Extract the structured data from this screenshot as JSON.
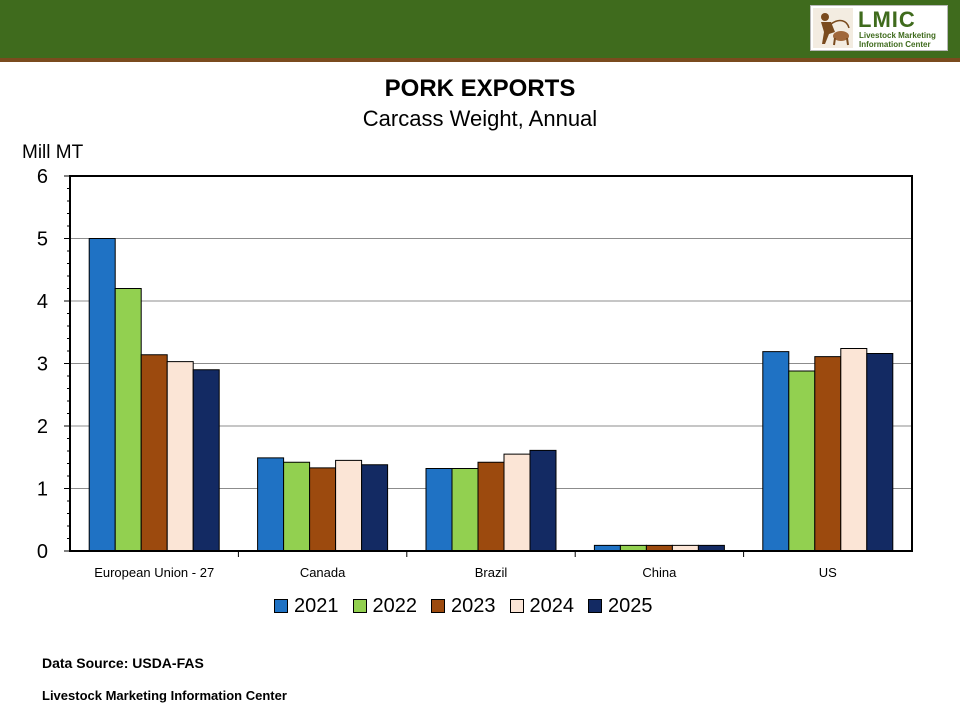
{
  "header": {
    "logo_name": "LMIC",
    "logo_sub_1": "Livestock Marketing",
    "logo_sub_2": "Information Center"
  },
  "colors": {
    "band": "#3f6b1d",
    "rule": "#7a4b1e",
    "series": [
      "#1f72c4",
      "#92d050",
      "#9c4a0e",
      "#fbe5d6",
      "#132a63"
    ]
  },
  "chart_data": {
    "type": "bar",
    "title": "PORK EXPORTS",
    "subtitle": "Carcass Weight, Annual",
    "ylabel": "Mill MT",
    "xlabel": "",
    "ylim": [
      0,
      6
    ],
    "yticks": [
      "0",
      "1",
      "2",
      "3",
      "4",
      "5",
      "6"
    ],
    "grid": true,
    "legend_position": "bottom",
    "categories": [
      "European Union - 27",
      "Canada",
      "Brazil",
      "China",
      "US"
    ],
    "series": [
      {
        "name": "2021",
        "values": [
          5.0,
          1.49,
          1.32,
          0.09,
          3.19
        ]
      },
      {
        "name": "2022",
        "values": [
          4.2,
          1.42,
          1.32,
          0.09,
          2.88
        ]
      },
      {
        "name": "2023",
        "values": [
          3.14,
          1.33,
          1.42,
          0.09,
          3.11
        ]
      },
      {
        "name": "2024",
        "values": [
          3.03,
          1.45,
          1.55,
          0.09,
          3.24
        ]
      },
      {
        "name": "2025",
        "values": [
          2.9,
          1.38,
          1.61,
          0.09,
          3.16
        ]
      }
    ]
  },
  "footer": {
    "source": "Data Source:  USDA-FAS",
    "org": "Livestock Marketing Information Center"
  }
}
